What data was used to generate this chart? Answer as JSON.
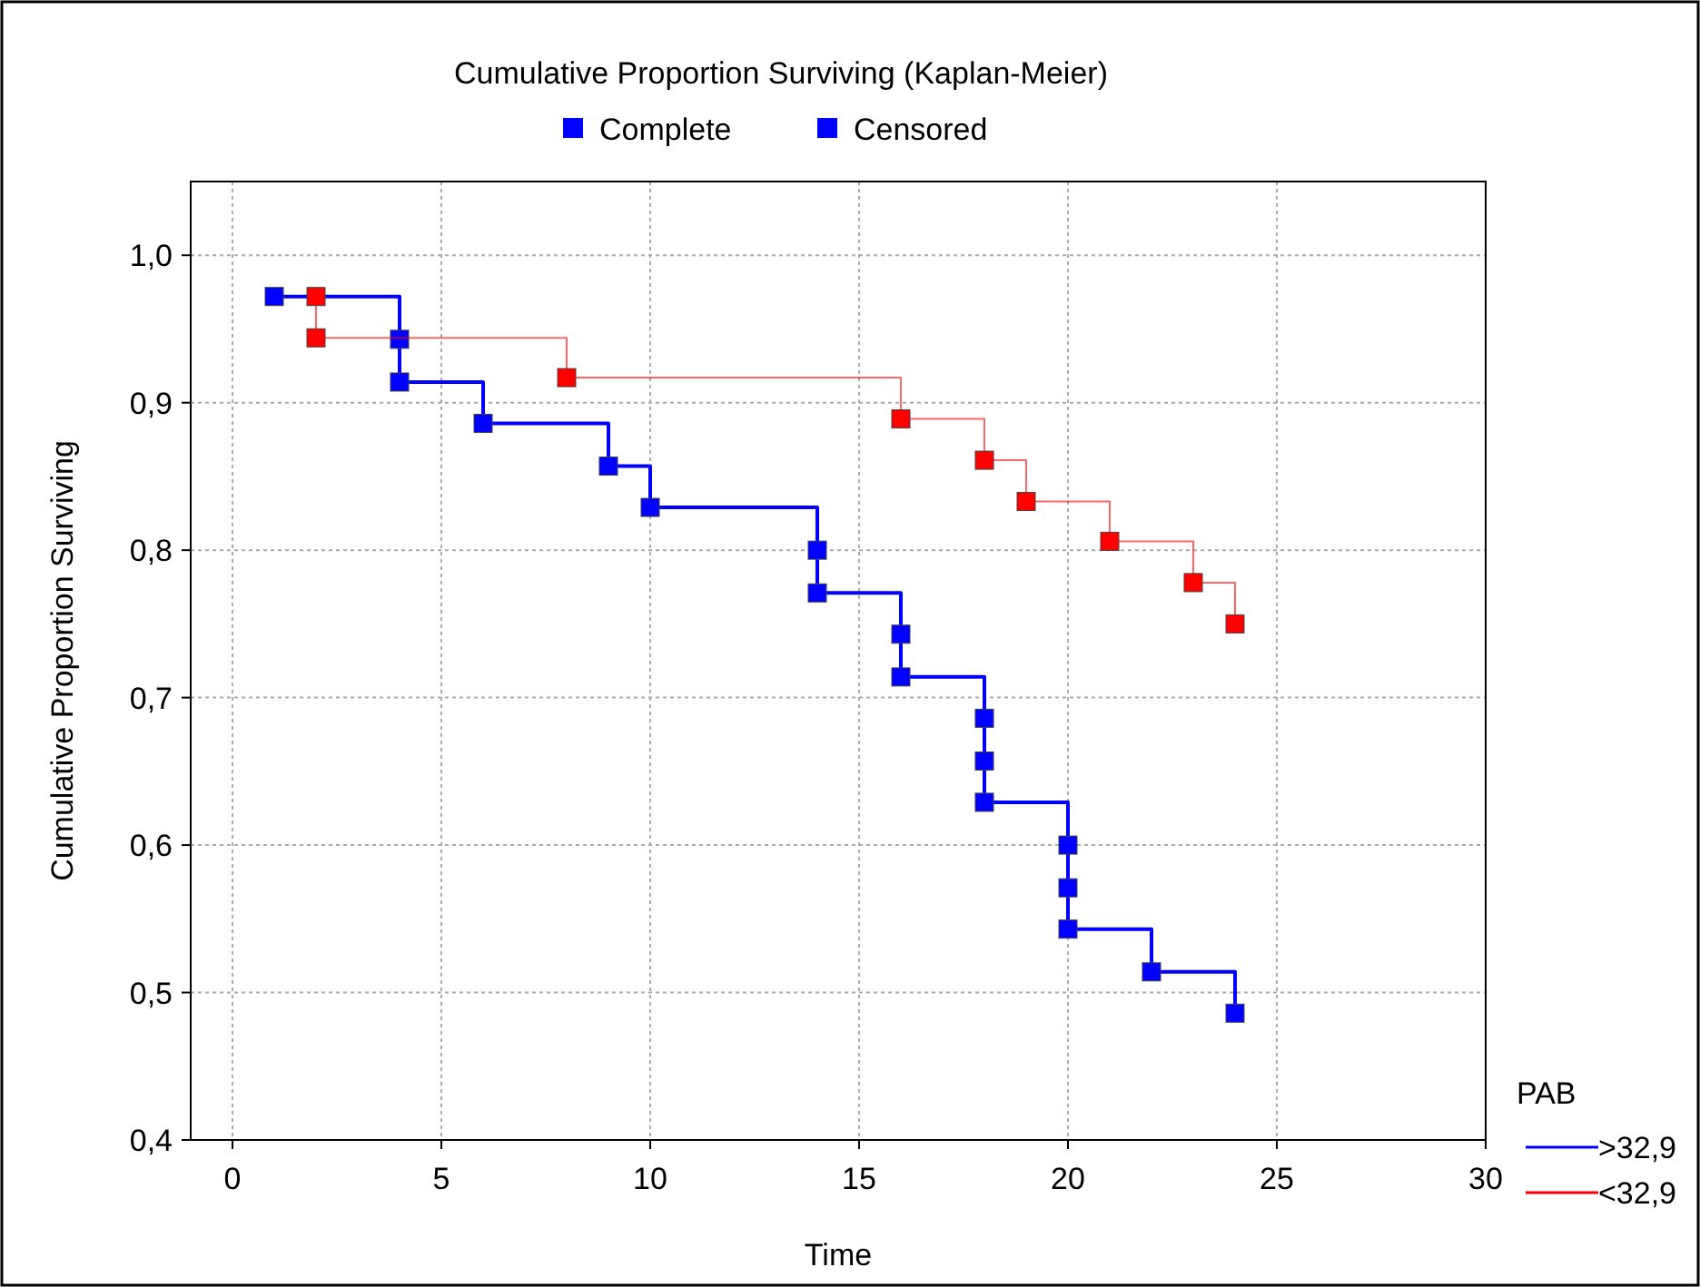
{
  "chart_data": {
    "type": "step",
    "title": "Cumulative Proportion Surviving (Kaplan-Meier)",
    "xlabel": "Time",
    "ylabel": "Cumulative Proportion Surviving",
    "legend_title": "PAB",
    "annotations": [
      "Complete",
      "Censored"
    ],
    "series": [
      {
        "name": ">32,9",
        "color": "#0000ff",
        "x": [
          1,
          4,
          4,
          6,
          9,
          10,
          14,
          14,
          16,
          16,
          18,
          18,
          18,
          20,
          20,
          20,
          22,
          24
        ],
        "values": [
          0.972,
          0.943,
          0.914,
          0.886,
          0.857,
          0.829,
          0.8,
          0.771,
          0.743,
          0.714,
          0.686,
          0.657,
          0.629,
          0.6,
          0.571,
          0.543,
          0.514,
          0.486
        ]
      },
      {
        "name": "<32,9",
        "color": "#ff0000",
        "x": [
          2,
          2,
          8,
          16,
          18,
          19,
          21,
          23,
          24
        ],
        "values": [
          0.972,
          0.944,
          0.917,
          0.889,
          0.861,
          0.833,
          0.806,
          0.778,
          0.75
        ]
      }
    ],
    "xlim": [
      -1,
      30
    ],
    "xticks": [
      0,
      5,
      10,
      15,
      20,
      25,
      30
    ],
    "ylim": [
      0.4,
      1.05
    ],
    "yticks": [
      {
        "value": 0.4,
        "label": "0,4"
      },
      {
        "value": 0.5,
        "label": "0,5"
      },
      {
        "value": 0.6,
        "label": "0,6"
      },
      {
        "value": 0.7,
        "label": "0,7"
      },
      {
        "value": 0.8,
        "label": "0,8"
      },
      {
        "value": 0.9,
        "label": "0,9"
      },
      {
        "value": 1.0,
        "label": "1,0"
      }
    ],
    "grid": true,
    "legend": "bottom right",
    "marker": "square",
    "line_style": "solid"
  }
}
